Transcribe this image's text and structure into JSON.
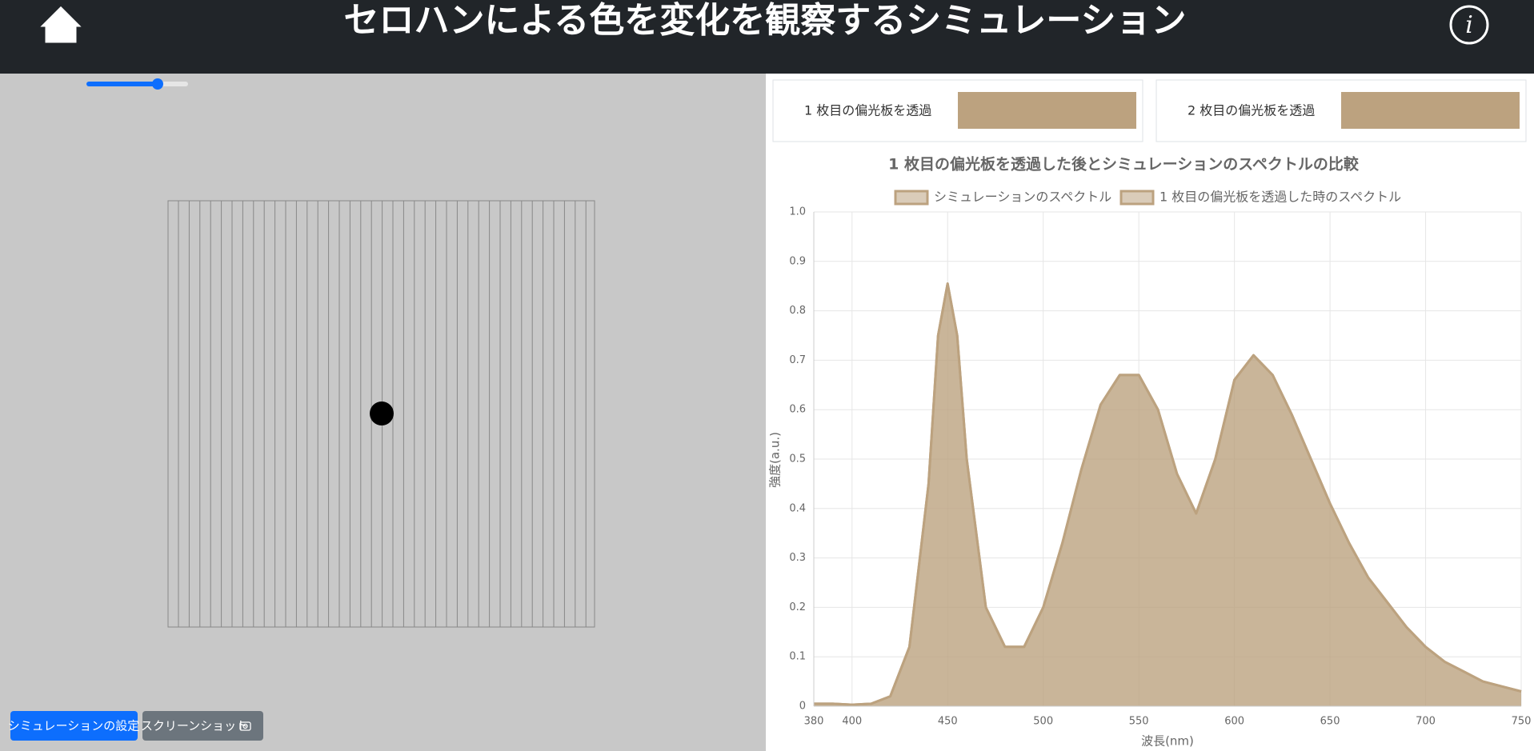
{
  "header": {
    "title": "セロハンによる色を変化を観察するシミュレーション"
  },
  "buttons": {
    "settings": "シミュレーションの設定",
    "screenshot": "スクリーンショット"
  },
  "swatches": [
    {
      "label": "1 枚目の偏光板を透過",
      "color": "#bca27f"
    },
    {
      "label": "2 枚目の偏光板を透過",
      "color": "#bca27f"
    }
  ],
  "chart_data": {
    "type": "area",
    "title": "1 枚目の偏光板を透過した後とシミュレーションのスペクトルの比較",
    "x_label": "波長(nm)",
    "y_label": "強度(a.u.)",
    "x": [
      380,
      390,
      400,
      410,
      420,
      430,
      440,
      445,
      450,
      455,
      460,
      470,
      480,
      490,
      500,
      510,
      520,
      530,
      540,
      550,
      560,
      570,
      580,
      590,
      600,
      610,
      620,
      630,
      640,
      650,
      660,
      670,
      680,
      690,
      700,
      710,
      720,
      730,
      740,
      750
    ],
    "series": [
      {
        "name": "シミュレーションのスペクトル",
        "color": "#bca27f",
        "values": [
          0.005,
          0.005,
          0.003,
          0.005,
          0.02,
          0.12,
          0.45,
          0.75,
          0.855,
          0.75,
          0.5,
          0.2,
          0.12,
          0.12,
          0.2,
          0.33,
          0.48,
          0.61,
          0.67,
          0.67,
          0.6,
          0.47,
          0.39,
          0.5,
          0.66,
          0.71,
          0.67,
          0.59,
          0.5,
          0.41,
          0.33,
          0.26,
          0.21,
          0.16,
          0.12,
          0.09,
          0.07,
          0.05,
          0.04,
          0.03
        ]
      },
      {
        "name": "1 枚目の偏光板を透過した時のスペクトル",
        "color": "#bca27f",
        "values": [
          0.005,
          0.005,
          0.003,
          0.005,
          0.02,
          0.12,
          0.45,
          0.75,
          0.855,
          0.75,
          0.5,
          0.2,
          0.12,
          0.12,
          0.2,
          0.33,
          0.48,
          0.61,
          0.67,
          0.67,
          0.6,
          0.47,
          0.39,
          0.5,
          0.66,
          0.71,
          0.67,
          0.59,
          0.5,
          0.41,
          0.33,
          0.26,
          0.21,
          0.16,
          0.12,
          0.09,
          0.07,
          0.05,
          0.04,
          0.03
        ]
      }
    ],
    "xlim": [
      380,
      750
    ],
    "xticks": [
      380,
      400,
      450,
      500,
      550,
      600,
      650,
      700,
      750
    ],
    "ylim": [
      0,
      1
    ],
    "yticks": [
      0,
      0.1,
      0.2,
      0.3,
      0.4,
      0.5,
      0.6,
      0.7,
      0.8,
      0.9,
      {
        "value": 1,
        "label": "1.0"
      }
    ],
    "grid": true
  }
}
